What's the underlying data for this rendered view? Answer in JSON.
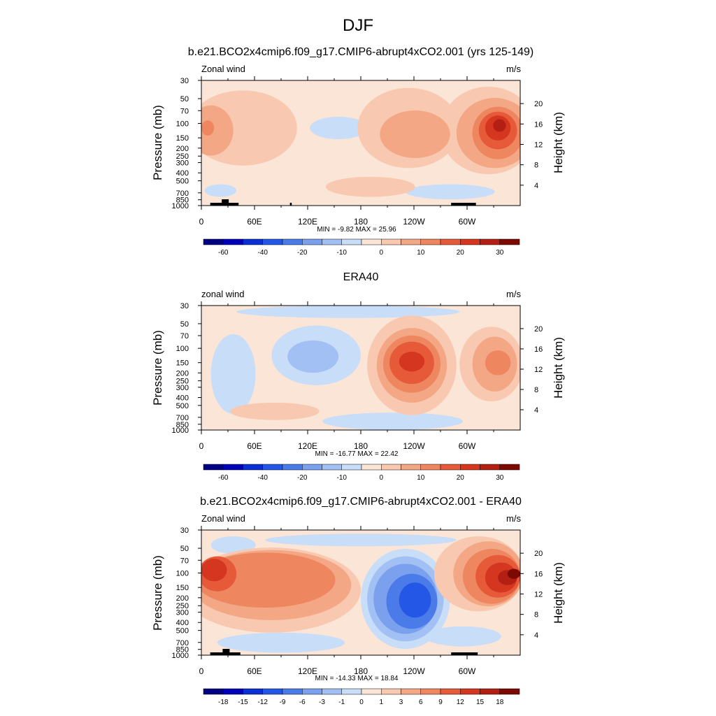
{
  "figure": {
    "title": "DJF"
  },
  "palettes": {
    "full": [
      "#000083",
      "#0000b7",
      "#0a2fd3",
      "#2457e5",
      "#4b7be9",
      "#7aa0ee",
      "#a2c0f4",
      "#c8ddf8",
      "#fbe5d6",
      "#f8c9b0",
      "#f3a785",
      "#ee8660",
      "#e65a3a",
      "#d5361f",
      "#b32013",
      "#7c0a02"
    ],
    "diff": [
      "#000083",
      "#0000b7",
      "#0a2fd3",
      "#2457e5",
      "#4b7be9",
      "#7aa0ee",
      "#a2c0f4",
      "#c8ddf8",
      "#fbe5d6",
      "#f8c9b0",
      "#f3a785",
      "#ee8660",
      "#e65a3a",
      "#d5361f",
      "#b32013",
      "#7c0a02"
    ]
  },
  "panels": [
    {
      "title": "b.e21.BCO2x4cmip6.f09_g17.CMIP6-abrupt4xCO2.001 (yrs 125-149)",
      "left_label": "Zonal wind",
      "right_label": "m/s",
      "stats": "MIN = -9.82  MAX = 25.96",
      "colorbar_labels": [
        "-60",
        "-40",
        "-20",
        "-10",
        "0",
        "10",
        "20",
        "30"
      ],
      "chart_data": {
        "type": "heatmap",
        "xlabel": "",
        "ylabel": "Pressure (mb)",
        "ylabel_right": "Height (km)",
        "x_ticks": [
          "0",
          "60E",
          "120E",
          "180",
          "120W",
          "60W"
        ],
        "x_tick_values": [
          0,
          60,
          120,
          180,
          240,
          300
        ],
        "xlim": [
          0,
          360
        ],
        "y_ticks": [
          "30",
          "50",
          "70",
          "100",
          "150",
          "200",
          "250",
          "300",
          "400",
          "500",
          "700",
          "850",
          "1000"
        ],
        "y_tick_values": [
          30,
          50,
          70,
          100,
          150,
          200,
          250,
          300,
          400,
          500,
          700,
          850,
          1000
        ],
        "ylim": [
          1000,
          30
        ],
        "y_scale": "log",
        "right_ticks": [
          "20",
          "16",
          "12",
          "8",
          "4"
        ],
        "right_tick_values": [
          20,
          16,
          12,
          8,
          4
        ],
        "min": -9.82,
        "max": 25.96,
        "contour_levels": [
          -70,
          -60,
          -50,
          -40,
          -30,
          -20,
          -15,
          -10,
          -5,
          0,
          5,
          10,
          15,
          20,
          25,
          30,
          35
        ],
        "terrain_longitudes": [
          [
            10,
            42
          ],
          [
            100,
            102
          ],
          [
            282,
            310
          ]
        ]
      }
    },
    {
      "title": "ERA40",
      "left_label": "zonal wind",
      "right_label": "m/s",
      "stats": "MIN = -16.77  MAX = 22.42",
      "colorbar_labels": [
        "-60",
        "-40",
        "-20",
        "-10",
        "0",
        "10",
        "20",
        "30"
      ],
      "chart_data": {
        "type": "heatmap",
        "xlabel": "",
        "ylabel": "Pressure (mb)",
        "ylabel_right": "Height (km)",
        "x_ticks": [
          "0",
          "60E",
          "120E",
          "180",
          "120W",
          "60W"
        ],
        "x_tick_values": [
          0,
          60,
          120,
          180,
          240,
          300
        ],
        "xlim": [
          0,
          360
        ],
        "y_ticks": [
          "30",
          "50",
          "70",
          "100",
          "150",
          "200",
          "250",
          "300",
          "400",
          "500",
          "700",
          "850",
          "1000"
        ],
        "y_tick_values": [
          30,
          50,
          70,
          100,
          150,
          200,
          250,
          300,
          400,
          500,
          700,
          850,
          1000
        ],
        "ylim": [
          1000,
          30
        ],
        "y_scale": "log",
        "right_ticks": [
          "20",
          "16",
          "12",
          "8",
          "4"
        ],
        "right_tick_values": [
          20,
          16,
          12,
          8,
          4
        ],
        "min": -16.77,
        "max": 22.42,
        "contour_levels": [
          -70,
          -60,
          -50,
          -40,
          -30,
          -20,
          -15,
          -10,
          -5,
          0,
          5,
          10,
          15,
          20,
          25,
          30,
          35
        ],
        "terrain_longitudes": []
      }
    },
    {
      "title": "b.e21.BCO2x4cmip6.f09_g17.CMIP6-abrupt4xCO2.001 - ERA40",
      "left_label": "Zonal wind",
      "right_label": "m/s",
      "stats": "MIN = -14.33  MAX = 18.84",
      "colorbar_labels": [
        "-18",
        "-15",
        "-12",
        "-9",
        "-6",
        "-3",
        "-1",
        "0",
        "1",
        "3",
        "6",
        "9",
        "12",
        "15",
        "18"
      ],
      "chart_data": {
        "type": "heatmap",
        "xlabel": "",
        "ylabel": "Pressure (mb)",
        "ylabel_right": "Height (km)",
        "x_ticks": [
          "0",
          "60E",
          "120E",
          "180",
          "120W",
          "60W"
        ],
        "x_tick_values": [
          0,
          60,
          120,
          180,
          240,
          300
        ],
        "xlim": [
          0,
          360
        ],
        "y_ticks": [
          "30",
          "50",
          "70",
          "100",
          "150",
          "200",
          "250",
          "300",
          "400",
          "500",
          "700",
          "850",
          "1000"
        ],
        "y_tick_values": [
          30,
          50,
          70,
          100,
          150,
          200,
          250,
          300,
          400,
          500,
          700,
          850,
          1000
        ],
        "ylim": [
          1000,
          30
        ],
        "y_scale": "log",
        "right_ticks": [
          "20",
          "16",
          "12",
          "8",
          "4"
        ],
        "right_tick_values": [
          20,
          16,
          12,
          8,
          4
        ],
        "min": -14.33,
        "max": 18.84,
        "contour_levels": [
          -21,
          -18,
          -15,
          -12,
          -9,
          -6,
          -3,
          -1,
          0,
          1,
          3,
          6,
          9,
          12,
          15,
          18,
          21
        ],
        "terrain_longitudes": [
          [
            10,
            44
          ],
          [
            282,
            312
          ]
        ]
      }
    }
  ]
}
